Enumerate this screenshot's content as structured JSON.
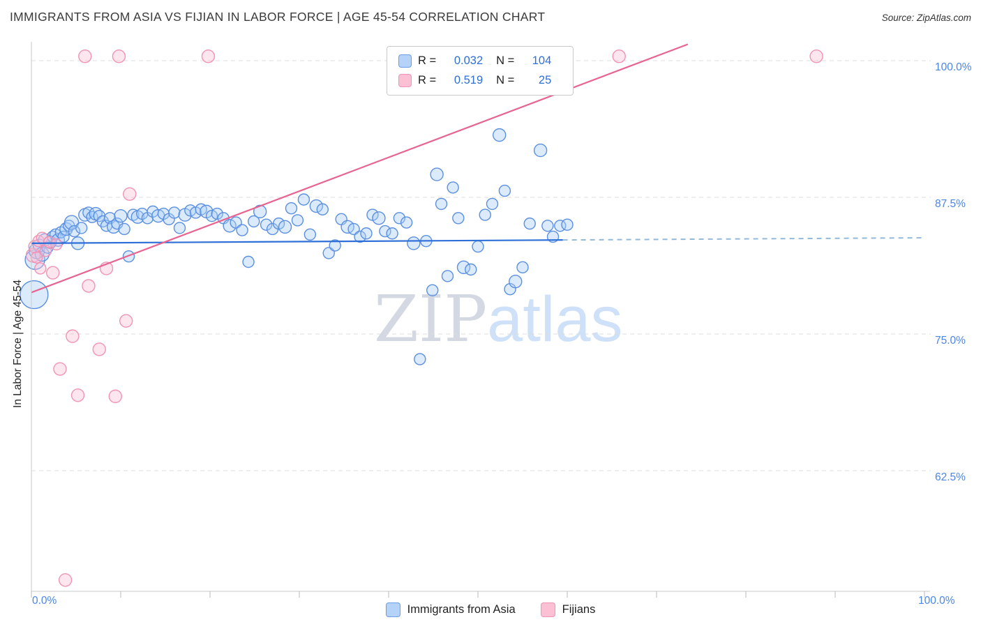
{
  "page": {
    "title": "IMMIGRANTS FROM ASIA VS FIJIAN IN LABOR FORCE | AGE 45-54 CORRELATION CHART",
    "source": "Source: ZipAtlas.com",
    "watermark": {
      "zip": "ZIP",
      "atlas": "atlas"
    }
  },
  "chart_data": {
    "type": "scatter",
    "title": "IMMIGRANTS FROM ASIA VS FIJIAN IN LABOR FORCE | AGE 45-54 CORRELATION CHART",
    "xlabel": "",
    "ylabel": "In Labor Force | Age 45-54",
    "axis_label_color": "#4a86e8",
    "grid": "horizontal-dashed",
    "legend": {
      "r_label": "R =",
      "n_label": "N ="
    },
    "x_axis": {
      "min": 0,
      "max": 100,
      "tick_step": 10,
      "left_label": "0.0%",
      "right_label": "100.0%"
    },
    "y_axis": {
      "min": 51.5,
      "max": 101.7,
      "ticks": [
        {
          "value": 100.0,
          "label": "100.0%"
        },
        {
          "value": 87.5,
          "label": "87.5%"
        },
        {
          "value": 75.0,
          "label": "75.0%"
        },
        {
          "value": 62.5,
          "label": "62.5%"
        }
      ]
    },
    "series": [
      {
        "name": "Immigrants from Asia",
        "R": "0.032",
        "N": "104",
        "color_fill": "#a8ccf7",
        "color_stroke": "#5b8fe0",
        "points": [
          [
            0.3,
            78.6,
            20
          ],
          [
            0.4,
            81.8,
            14
          ],
          [
            0.6,
            82.6,
            11
          ],
          [
            0.9,
            83.1,
            9
          ],
          [
            1.2,
            82.3,
            10
          ],
          [
            1.5,
            83.6,
            9
          ],
          [
            1.8,
            82.9,
            8
          ],
          [
            2.1,
            83.4,
            9
          ],
          [
            2.4,
            83.9,
            8
          ],
          [
            2.7,
            84.1,
            8
          ],
          [
            3.0,
            83.6,
            9
          ],
          [
            3.3,
            84.3,
            8
          ],
          [
            3.6,
            83.9,
            8
          ],
          [
            3.9,
            84.6,
            9
          ],
          [
            4.2,
            84.9,
            8
          ],
          [
            4.5,
            85.2,
            10
          ],
          [
            4.8,
            84.4,
            8
          ],
          [
            5.2,
            83.3,
            9
          ],
          [
            5.6,
            84.7,
            8
          ],
          [
            6.0,
            85.9,
            9
          ],
          [
            6.4,
            86.1,
            8
          ],
          [
            6.8,
            85.7,
            8
          ],
          [
            7.2,
            86.0,
            9
          ],
          [
            7.6,
            85.8,
            8
          ],
          [
            8.0,
            85.3,
            8
          ],
          [
            8.4,
            84.9,
            8
          ],
          [
            8.8,
            85.6,
            8
          ],
          [
            9.2,
            84.8,
            9
          ],
          [
            9.6,
            85.1,
            8
          ],
          [
            10.0,
            85.8,
            9
          ],
          [
            10.4,
            84.6,
            8
          ],
          [
            10.9,
            82.1,
            8
          ],
          [
            11.4,
            85.9,
            8
          ],
          [
            11.9,
            85.7,
            9
          ],
          [
            12.4,
            86.0,
            8
          ],
          [
            13.0,
            85.6,
            8
          ],
          [
            13.6,
            86.2,
            8
          ],
          [
            14.2,
            85.8,
            9
          ],
          [
            14.8,
            86.0,
            8
          ],
          [
            15.4,
            85.5,
            8
          ],
          [
            16.0,
            86.1,
            8
          ],
          [
            16.6,
            84.7,
            8
          ],
          [
            17.2,
            85.9,
            9
          ],
          [
            17.8,
            86.3,
            8
          ],
          [
            18.4,
            86.1,
            8
          ],
          [
            19.0,
            86.4,
            8
          ],
          [
            19.6,
            86.2,
            9
          ],
          [
            20.2,
            85.8,
            8
          ],
          [
            20.8,
            86.0,
            8
          ],
          [
            21.5,
            85.6,
            8
          ],
          [
            22.2,
            84.9,
            9
          ],
          [
            22.9,
            85.2,
            8
          ],
          [
            23.6,
            84.5,
            8
          ],
          [
            24.3,
            81.6,
            8
          ],
          [
            24.9,
            85.3,
            8
          ],
          [
            25.6,
            86.2,
            9
          ],
          [
            26.3,
            85.0,
            8
          ],
          [
            27.0,
            84.6,
            8
          ],
          [
            27.7,
            85.1,
            8
          ],
          [
            28.4,
            84.8,
            9
          ],
          [
            29.1,
            86.5,
            8
          ],
          [
            29.8,
            85.4,
            8
          ],
          [
            30.5,
            87.3,
            8
          ],
          [
            31.2,
            84.1,
            8
          ],
          [
            31.9,
            86.7,
            9
          ],
          [
            32.6,
            86.4,
            8
          ],
          [
            33.3,
            82.4,
            8
          ],
          [
            34.0,
            83.1,
            8
          ],
          [
            34.7,
            85.5,
            8
          ],
          [
            35.4,
            84.8,
            9
          ],
          [
            36.1,
            84.6,
            8
          ],
          [
            36.8,
            83.9,
            8
          ],
          [
            37.5,
            84.2,
            8
          ],
          [
            38.2,
            85.9,
            8
          ],
          [
            38.9,
            85.6,
            9
          ],
          [
            39.6,
            84.4,
            8
          ],
          [
            40.4,
            84.2,
            8
          ],
          [
            41.2,
            85.6,
            8
          ],
          [
            42.0,
            85.2,
            8
          ],
          [
            42.8,
            83.3,
            9
          ],
          [
            43.5,
            72.7,
            8
          ],
          [
            44.2,
            83.5,
            8
          ],
          [
            44.9,
            79.0,
            8
          ],
          [
            45.4,
            89.6,
            9
          ],
          [
            45.9,
            86.9,
            8
          ],
          [
            46.6,
            80.3,
            8
          ],
          [
            47.2,
            88.4,
            8
          ],
          [
            47.8,
            85.6,
            8
          ],
          [
            48.4,
            81.1,
            9
          ],
          [
            49.2,
            80.9,
            8
          ],
          [
            50.0,
            83.0,
            8
          ],
          [
            50.8,
            85.9,
            8
          ],
          [
            51.6,
            86.9,
            8
          ],
          [
            52.4,
            93.2,
            9
          ],
          [
            53.0,
            88.1,
            8
          ],
          [
            53.6,
            79.1,
            8
          ],
          [
            54.2,
            79.8,
            9
          ],
          [
            55.0,
            81.1,
            8
          ],
          [
            55.8,
            85.1,
            8
          ],
          [
            57.0,
            91.8,
            9
          ],
          [
            57.8,
            84.9,
            8
          ],
          [
            58.4,
            83.9,
            8
          ],
          [
            59.2,
            84.9,
            8
          ],
          [
            60.0,
            85.0,
            8
          ]
        ]
      },
      {
        "name": "Fijians",
        "R": "0.519",
        "N": "25",
        "color_fill": "#fbc0d4",
        "color_stroke": "#f093b4",
        "points": [
          [
            0.2,
            82.2,
            10
          ],
          [
            0.4,
            83.0,
            9
          ],
          [
            0.6,
            82.0,
            8
          ],
          [
            0.8,
            83.5,
            8
          ],
          [
            1.0,
            81.0,
            8
          ],
          [
            1.2,
            83.8,
            8
          ],
          [
            1.6,
            82.6,
            8
          ],
          [
            2.0,
            83.4,
            8
          ],
          [
            2.4,
            80.6,
            9
          ],
          [
            2.8,
            83.2,
            8
          ],
          [
            3.2,
            71.8,
            9
          ],
          [
            3.8,
            52.5,
            9
          ],
          [
            4.6,
            74.8,
            9
          ],
          [
            5.2,
            69.4,
            9
          ],
          [
            6.0,
            100.4,
            9
          ],
          [
            6.4,
            79.4,
            9
          ],
          [
            7.6,
            73.6,
            9
          ],
          [
            8.4,
            81.0,
            9
          ],
          [
            9.4,
            69.3,
            9
          ],
          [
            9.8,
            100.4,
            9
          ],
          [
            10.6,
            76.2,
            9
          ],
          [
            11.0,
            87.8,
            9
          ],
          [
            19.8,
            100.4,
            9
          ],
          [
            65.8,
            100.4,
            9
          ],
          [
            87.9,
            100.4,
            9
          ]
        ]
      }
    ],
    "trend_lines": [
      {
        "series": "Immigrants from Asia",
        "color": "#2e6fd8",
        "dash_color": "#93b9da",
        "solid": [
          [
            0,
            83.3
          ],
          [
            59.5,
            83.6
          ]
        ],
        "dashed": [
          [
            59.5,
            83.6
          ],
          [
            100,
            83.8
          ]
        ]
      },
      {
        "series": "Fijians",
        "color": "#e8648f",
        "solid": [
          [
            0,
            78.8
          ],
          [
            73.5,
            101.5
          ]
        ]
      }
    ]
  }
}
